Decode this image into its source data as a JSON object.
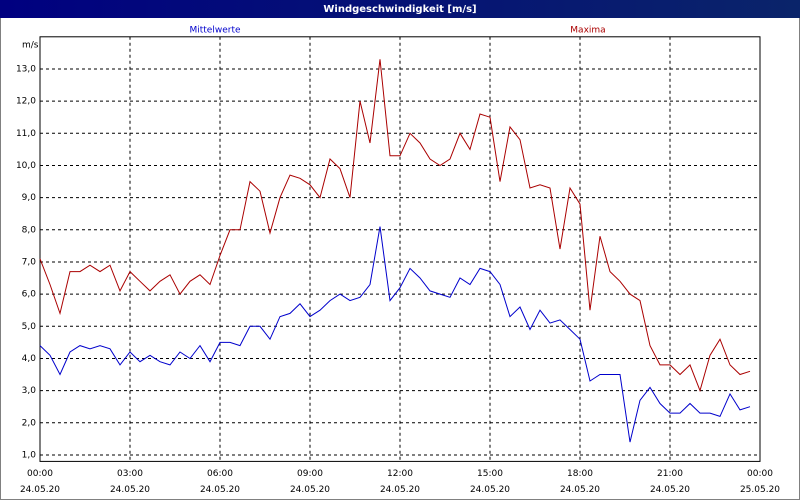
{
  "chart_data": {
    "type": "line",
    "title": "Windgeschwindigkeit [m/s]",
    "y_label": "m/s",
    "x": [
      0,
      20,
      40,
      60,
      80,
      100,
      120,
      140,
      160,
      180,
      200,
      220,
      240,
      260,
      280,
      300,
      320,
      340,
      360,
      380,
      400,
      420,
      440,
      460,
      480,
      500,
      520,
      540,
      560,
      580,
      600,
      620,
      640,
      660,
      680,
      700,
      720,
      740,
      760,
      780,
      800,
      820,
      840,
      860,
      880,
      900,
      920,
      940,
      960,
      980,
      1000,
      1020,
      1040,
      1060,
      1080,
      1100,
      1120,
      1140,
      1160,
      1180,
      1200,
      1220,
      1240,
      1260,
      1280,
      1300,
      1320,
      1340,
      1360,
      1380,
      1400,
      1420
    ],
    "xlim": [
      0,
      1440
    ],
    "xticks": [
      {
        "value": 0,
        "label": "00:00"
      },
      {
        "value": 180,
        "label": "03:00"
      },
      {
        "value": 360,
        "label": "06:00"
      },
      {
        "value": 540,
        "label": "09:00"
      },
      {
        "value": 720,
        "label": "12:00"
      },
      {
        "value": 900,
        "label": "15:00"
      },
      {
        "value": 1080,
        "label": "18:00"
      },
      {
        "value": 1260,
        "label": "21:00"
      },
      {
        "value": 1440,
        "label": "00:00"
      }
    ],
    "xtick_dates": [
      "24.05.20",
      "24.05.20",
      "24.05.20",
      "24.05.20",
      "24.05.20",
      "24.05.20",
      "24.05.20",
      "24.05.20",
      "25.05.20"
    ],
    "ylim": [
      0.8,
      14
    ],
    "yticks": [
      {
        "value": 1,
        "label": "1,0"
      },
      {
        "value": 2,
        "label": "2,0"
      },
      {
        "value": 3,
        "label": "3,0"
      },
      {
        "value": 4,
        "label": "4,0"
      },
      {
        "value": 5,
        "label": "5,0"
      },
      {
        "value": 6,
        "label": "6,0"
      },
      {
        "value": 7,
        "label": "7,0"
      },
      {
        "value": 8,
        "label": "8,0"
      },
      {
        "value": 9,
        "label": "9,0"
      },
      {
        "value": 10,
        "label": "10,0"
      },
      {
        "value": 11,
        "label": "11,0"
      },
      {
        "value": 12,
        "label": "12,0"
      },
      {
        "value": 13,
        "label": "13,0"
      }
    ],
    "grid": true,
    "series": [
      {
        "name": "Mittelwerte",
        "color": "#0000cc",
        "values": [
          4.4,
          4.1,
          3.5,
          4.2,
          4.4,
          4.3,
          4.4,
          4.3,
          3.8,
          4.2,
          3.9,
          4.1,
          3.9,
          3.8,
          4.2,
          4.0,
          4.4,
          3.9,
          4.5,
          4.5,
          4.4,
          5.0,
          5.0,
          4.6,
          5.3,
          5.4,
          5.7,
          5.3,
          5.5,
          5.8,
          6.0,
          5.8,
          5.9,
          6.3,
          8.1,
          5.8,
          6.2,
          6.8,
          6.5,
          6.1,
          6.0,
          5.9,
          6.5,
          6.3,
          6.8,
          6.7,
          6.3,
          5.3,
          5.6,
          4.9,
          5.5,
          5.1,
          5.2,
          4.9,
          4.6,
          3.3,
          3.5,
          3.5,
          3.5,
          1.4,
          2.7,
          3.1,
          2.6,
          2.3,
          2.3,
          2.6,
          2.3,
          2.3,
          2.2,
          2.9,
          2.4,
          2.5
        ]
      },
      {
        "name": "Maxima",
        "color": "#aa0000",
        "values": [
          7.1,
          6.3,
          5.4,
          6.7,
          6.7,
          6.9,
          6.7,
          6.9,
          6.1,
          6.7,
          6.4,
          6.1,
          6.4,
          6.6,
          6.0,
          6.4,
          6.6,
          6.3,
          7.2,
          8.0,
          8.0,
          9.5,
          9.2,
          7.9,
          9.0,
          9.7,
          9.6,
          9.4,
          9.0,
          10.2,
          9.9,
          9.0,
          12.0,
          10.7,
          13.3,
          10.3,
          10.3,
          11.0,
          10.7,
          10.2,
          10.0,
          10.2,
          11.0,
          10.5,
          11.6,
          11.5,
          9.5,
          11.2,
          10.8,
          9.3,
          9.4,
          9.3,
          7.4,
          9.3,
          8.8,
          5.5,
          7.8,
          6.7,
          6.4,
          6.0,
          5.8,
          4.4,
          3.8,
          3.8,
          3.5,
          3.8,
          3.0,
          4.1,
          4.6,
          3.8,
          3.5,
          3.6
        ]
      }
    ]
  }
}
